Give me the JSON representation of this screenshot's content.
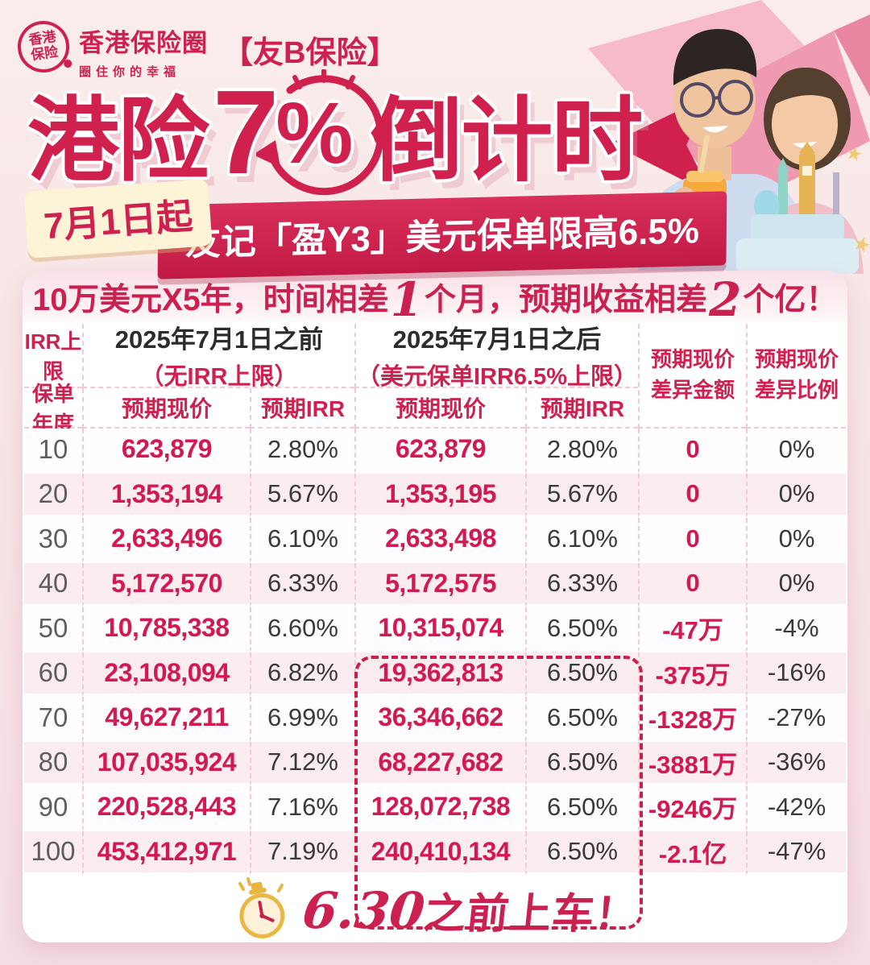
{
  "header": {
    "logo": {
      "circle_line1": "香港",
      "circle_line2": "保险",
      "brand": "香港保险圈",
      "slogan": "圈住你的幸福",
      "product_tag": "【友B保险】"
    },
    "title": {
      "prefix": "港险",
      "rate": "7",
      "percent": "%",
      "suffix": "倒计时"
    },
    "date_badge": "7月1日起",
    "ribbon": "友记「盈Y3」美元保单限高6.5%"
  },
  "card": {
    "headline": {
      "part1": "10万美元X5年，时间相差",
      "big1": "1",
      "part2": "个月，预期收益相差",
      "big2": "2",
      "part3": "个亿！"
    },
    "table": {
      "corner_top": "IRR上限",
      "corner_bottom": "保单年度",
      "group_before_title": "2025年7月1日之前",
      "group_before_subtitle": "（无IRR上限）",
      "group_after_title": "2025年7月1日之后",
      "group_after_subtitle": "（美元保单IRR6.5%上限）",
      "sub_price": "预期现价",
      "sub_irr": "预期IRR",
      "diff_amount_header": "预期现价\n差异金额",
      "diff_ratio_header": "预期现价\n差异比例",
      "rows": [
        {
          "year": "10",
          "before_price": "623,879",
          "before_irr": "2.80%",
          "after_price": "623,879",
          "after_irr": "2.80%",
          "diff_amount": "0",
          "diff_ratio": "0%"
        },
        {
          "year": "20",
          "before_price": "1,353,194",
          "before_irr": "5.67%",
          "after_price": "1,353,195",
          "after_irr": "5.67%",
          "diff_amount": "0",
          "diff_ratio": "0%"
        },
        {
          "year": "30",
          "before_price": "2,633,496",
          "before_irr": "6.10%",
          "after_price": "2,633,498",
          "after_irr": "6.10%",
          "diff_amount": "0",
          "diff_ratio": "0%"
        },
        {
          "year": "40",
          "before_price": "5,172,570",
          "before_irr": "6.33%",
          "after_price": "5,172,575",
          "after_irr": "6.33%",
          "diff_amount": "0",
          "diff_ratio": "0%"
        },
        {
          "year": "50",
          "before_price": "10,785,338",
          "before_irr": "6.60%",
          "after_price": "10,315,074",
          "after_irr": "6.50%",
          "diff_amount": "-47万",
          "diff_ratio": "-4%"
        },
        {
          "year": "60",
          "before_price": "23,108,094",
          "before_irr": "6.82%",
          "after_price": "19,362,813",
          "after_irr": "6.50%",
          "diff_amount": "-375万",
          "diff_ratio": "-16%"
        },
        {
          "year": "70",
          "before_price": "49,627,211",
          "before_irr": "6.99%",
          "after_price": "36,346,662",
          "after_irr": "6.50%",
          "diff_amount": "-1328万",
          "diff_ratio": "-27%"
        },
        {
          "year": "80",
          "before_price": "107,035,924",
          "before_irr": "7.12%",
          "after_price": "68,227,682",
          "after_irr": "6.50%",
          "diff_amount": "-3881万",
          "diff_ratio": "-36%"
        },
        {
          "year": "90",
          "before_price": "220,528,443",
          "before_irr": "7.16%",
          "after_price": "128,072,738",
          "after_irr": "6.50%",
          "diff_amount": "-9246万",
          "diff_ratio": "-42%"
        },
        {
          "year": "100",
          "before_price": "453,412,971",
          "before_irr": "7.19%",
          "after_price": "240,410,134",
          "after_irr": "6.50%",
          "diff_amount": "-2.1亿",
          "diff_ratio": "-47%"
        }
      ]
    },
    "footer": {
      "big": "6.30",
      "rest": "之前上车！"
    }
  },
  "colors": {
    "crimson": "#ce2150",
    "number_crimson": "#d21952",
    "dark_text": "#3a3a3a",
    "row_pink": "#faecef",
    "cream_badge": "#fdf3d6"
  }
}
